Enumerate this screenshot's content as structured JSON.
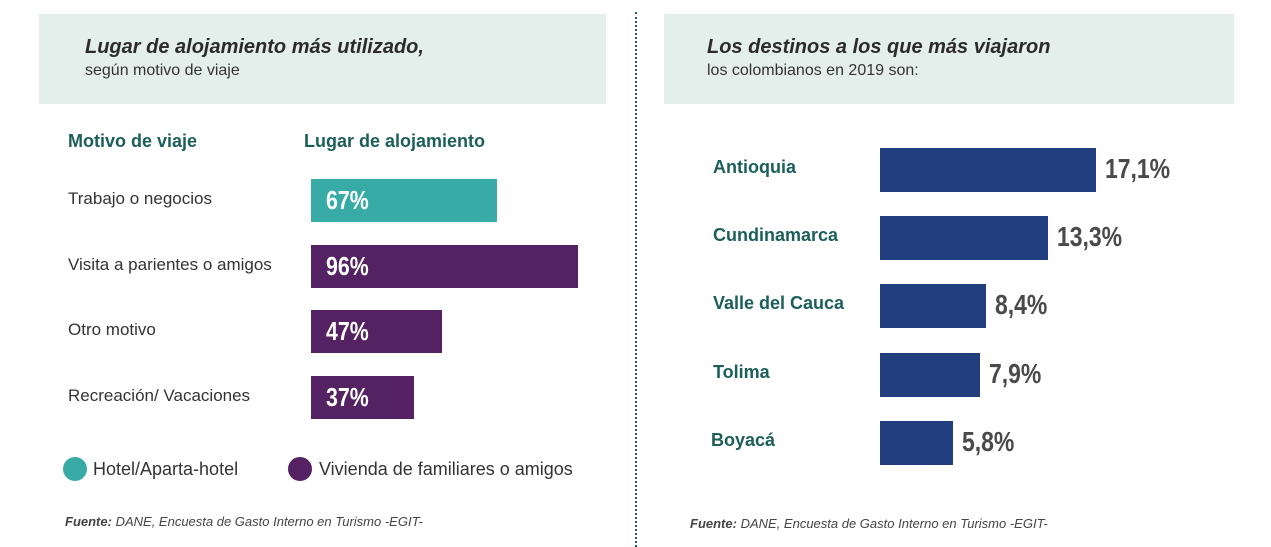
{
  "left_panel": {
    "title": "Lugar de alojamiento más utilizado,",
    "subtitle": "según motivo de viaje",
    "col_reason": "Motivo de viaje",
    "col_place": "Lugar de alojamiento",
    "source_label": "Fuente:",
    "source_text": "DANE, Encuesta de Gasto Interno en Turismo -EGIT-"
  },
  "right_panel": {
    "title": "Los destinos a los que más viajaron",
    "subtitle": "los colombianos en 2019 son:",
    "source_label": "Fuente:",
    "source_text": "DANE, Encuesta de Gasto Interno en Turismo -EGIT-"
  },
  "colors": {
    "hotel": "#39aba7",
    "familiares": "#542262",
    "destinos": "#223e7f",
    "header_bg": "#e4eeea",
    "heading_text": "#1b5e5a"
  },
  "chart_data": [
    {
      "type": "bar",
      "orientation": "horizontal",
      "categories": [
        "Trabajo o negocios",
        "Visita a parientes o amigos",
        "Otro motivo",
        "Recreación/ Vacaciones"
      ],
      "values": [
        67,
        96,
        47,
        37
      ],
      "labels": [
        "67%",
        "96%",
        "47%",
        "37%"
      ],
      "bar_series": [
        "hotel",
        "familiares",
        "familiares",
        "familiares"
      ],
      "legend": [
        {
          "key": "hotel",
          "name": "Hotel/Aparta-hotel"
        },
        {
          "key": "familiares",
          "name": "Vivienda de familiares o amigos"
        }
      ],
      "legend_position": "bottom",
      "xlim": [
        0,
        100
      ],
      "grid": false
    },
    {
      "type": "bar",
      "orientation": "horizontal",
      "categories": [
        "Antioquia",
        "Cundinamarca",
        "Valle del Cauca",
        "Tolima",
        "Boyacá"
      ],
      "values": [
        17.1,
        13.3,
        8.4,
        7.9,
        5.8
      ],
      "labels": [
        "17,1%",
        "13,3%",
        "8,4%",
        "7,9%",
        "5,8%"
      ],
      "xlim": [
        0,
        17.1
      ],
      "grid": false
    }
  ]
}
